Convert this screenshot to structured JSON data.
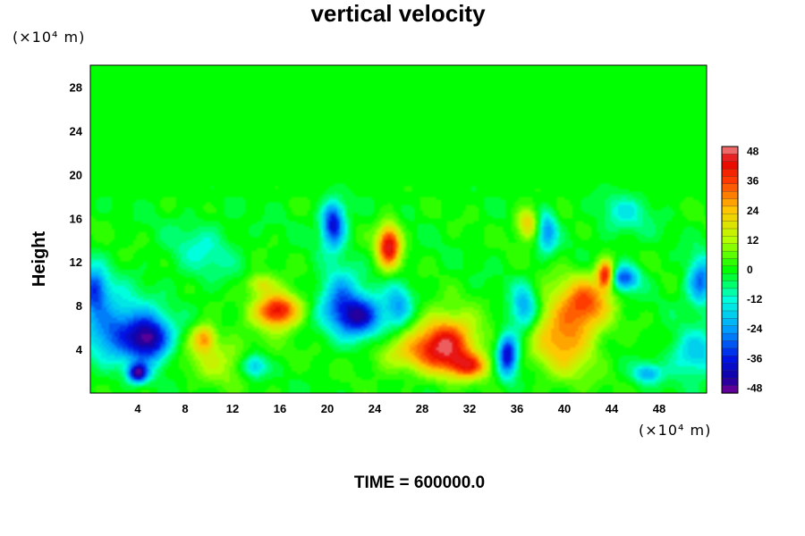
{
  "chart_data": {
    "type": "heatmap",
    "title": "vertical velocity",
    "ylabel": "Height",
    "xlabel": "",
    "x_unit": "(×10⁴ m)",
    "y_unit": "(×10⁴ m)",
    "footer": "TIME = 600000.0",
    "xlim": [
      0,
      52
    ],
    "ylim": [
      0,
      30
    ],
    "x_ticks": [
      4,
      8,
      12,
      16,
      20,
      24,
      28,
      32,
      36,
      40,
      44,
      48
    ],
    "y_ticks": [
      4,
      8,
      12,
      16,
      20,
      24,
      28
    ],
    "colorbar": {
      "range": [
        -50,
        50
      ],
      "ticks": [
        48,
        36,
        24,
        12,
        0,
        -12,
        -24,
        -36,
        -48
      ]
    },
    "features": [
      {
        "x": 30.0,
        "y": 4.5,
        "value": 45,
        "sx": 1.8,
        "sy": 1.8
      },
      {
        "x": 32.0,
        "y": 2.5,
        "value": 28,
        "sx": 1.2,
        "sy": 0.8
      },
      {
        "x": 15.8,
        "y": 7.6,
        "value": 45,
        "sx": 1.3,
        "sy": 1.1
      },
      {
        "x": 25.2,
        "y": 13.5,
        "value": 45,
        "sx": 0.7,
        "sy": 1.4
      },
      {
        "x": 40.0,
        "y": 5.5,
        "value": 30,
        "sx": 1.9,
        "sy": 2.6
      },
      {
        "x": 42.0,
        "y": 8.5,
        "value": 25,
        "sx": 1.4,
        "sy": 1.6
      },
      {
        "x": 43.5,
        "y": 10.8,
        "value": 44,
        "sx": 0.5,
        "sy": 0.9
      },
      {
        "x": 9.6,
        "y": 5.0,
        "value": 28,
        "sx": 0.7,
        "sy": 0.9
      },
      {
        "x": 26.5,
        "y": 3.5,
        "value": 15,
        "sx": 2.0,
        "sy": 1.2
      },
      {
        "x": 36.9,
        "y": 15.5,
        "value": 24,
        "sx": 0.7,
        "sy": 1.0
      },
      {
        "x": 14.3,
        "y": 10.0,
        "value": 18,
        "sx": 0.9,
        "sy": 0.7
      },
      {
        "x": 11.5,
        "y": 3.0,
        "value": 12,
        "sx": 2.5,
        "sy": 1.5
      },
      {
        "x": 5.0,
        "y": 5.0,
        "value": -45,
        "sx": 1.3,
        "sy": 1.5
      },
      {
        "x": 2.0,
        "y": 6.0,
        "value": -28,
        "sx": 1.8,
        "sy": 2.2
      },
      {
        "x": 4.0,
        "y": 1.8,
        "value": -42,
        "sx": 0.6,
        "sy": 0.6
      },
      {
        "x": 0.3,
        "y": 9.5,
        "value": -32,
        "sx": 0.8,
        "sy": 1.4
      },
      {
        "x": 20.5,
        "y": 15.5,
        "value": -40,
        "sx": 0.7,
        "sy": 1.5
      },
      {
        "x": 22.8,
        "y": 7.0,
        "value": -40,
        "sx": 1.4,
        "sy": 1.3
      },
      {
        "x": 21.0,
        "y": 8.7,
        "value": -25,
        "sx": 1.2,
        "sy": 1.8
      },
      {
        "x": 26.0,
        "y": 8.0,
        "value": -20,
        "sx": 0.8,
        "sy": 1.5
      },
      {
        "x": 35.2,
        "y": 3.5,
        "value": -40,
        "sx": 0.6,
        "sy": 1.4
      },
      {
        "x": 36.6,
        "y": 7.7,
        "value": -25,
        "sx": 0.8,
        "sy": 1.5
      },
      {
        "x": 45.0,
        "y": 10.5,
        "value": -32,
        "sx": 0.9,
        "sy": 0.8
      },
      {
        "x": 51.5,
        "y": 10.2,
        "value": -30,
        "sx": 0.8,
        "sy": 1.5
      },
      {
        "x": 51.0,
        "y": 3.5,
        "value": -20,
        "sx": 1.5,
        "sy": 1.5
      },
      {
        "x": 13.8,
        "y": 2.5,
        "value": -25,
        "sx": 0.8,
        "sy": 0.8
      },
      {
        "x": 47.0,
        "y": 1.8,
        "value": -22,
        "sx": 0.8,
        "sy": 0.6
      },
      {
        "x": 38.5,
        "y": 14.8,
        "value": -25,
        "sx": 0.6,
        "sy": 1.3
      },
      {
        "x": 9.5,
        "y": 13.0,
        "value": -10,
        "sx": 2.0,
        "sy": 2.0
      },
      {
        "x": 45.0,
        "y": 16.5,
        "value": -12,
        "sx": 1.5,
        "sy": 1.5
      }
    ]
  },
  "colors": {
    "background": "#00ff00"
  }
}
